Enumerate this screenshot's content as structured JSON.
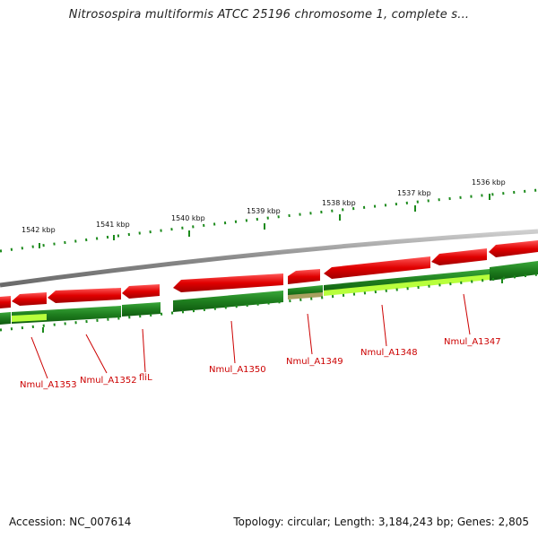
{
  "title": "Nitrosospira multiformis ATCC 25196 chromosome 1, complete s...",
  "ticks": [
    "1542 kbp",
    "1541 kbp",
    "1540 kbp",
    "1539 kbp",
    "1538 kbp",
    "1537 kbp",
    "1536 kbp"
  ],
  "genes": [
    "Nmul_A1353",
    "Nmul_A1352",
    "fliL",
    "Nmul_A1350",
    "Nmul_A1349",
    "Nmul_A1348",
    "Nmul_A1347"
  ],
  "footer": {
    "accession": "Accession: NC_007614",
    "summary": "Topology: circular; Length: 3,184,243 bp; Genes: 2,805"
  },
  "colors": {
    "forward_cds": "#e00000",
    "reverse_cds": "#1e7d1e",
    "gene_highlight": "#b8ff3c",
    "pseudo": "#a8a060",
    "backbone": "#8a8a8a",
    "tick": "#1b8a1b",
    "label": "#cc0000"
  }
}
